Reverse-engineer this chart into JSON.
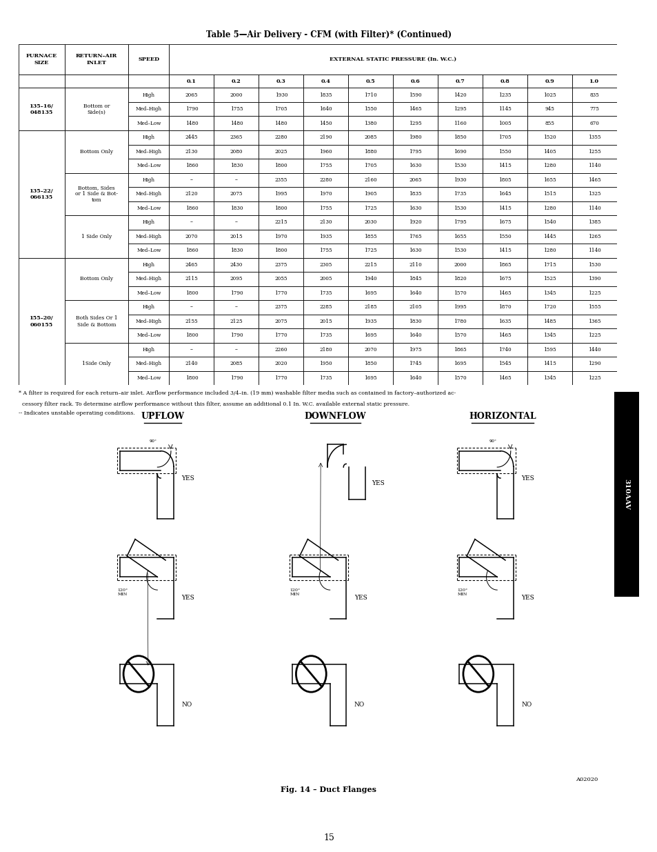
{
  "title": "Table 5—Air Delivery - CFM (with Filter)* (Continued)",
  "rows": [
    {
      "furnace": "135–16/\n048135",
      "inlet": "Bottom or\nSide(s)",
      "speeds": [
        "High",
        "Med–High",
        "Med–Low"
      ],
      "values": [
        [
          2065,
          2000,
          1930,
          1835,
          1710,
          1590,
          1420,
          1235,
          1025,
          835
        ],
        [
          1790,
          1755,
          1705,
          1640,
          1550,
          1465,
          1295,
          1145,
          945,
          775
        ],
        [
          1480,
          1480,
          1480,
          1450,
          1380,
          1295,
          1160,
          1005,
          855,
          670
        ]
      ]
    },
    {
      "furnace": "135–22/\n066135",
      "inlet": "Bottom Only",
      "speeds": [
        "High",
        "Med–High",
        "Med–Low"
      ],
      "values": [
        [
          2445,
          2365,
          2280,
          2190,
          2085,
          1980,
          1850,
          1705,
          1520,
          1355
        ],
        [
          2130,
          2080,
          2025,
          1960,
          1880,
          1795,
          1690,
          1550,
          1405,
          1255
        ],
        [
          1860,
          1830,
          1800,
          1755,
          1705,
          1630,
          1530,
          1415,
          1280,
          1140
        ]
      ]
    },
    {
      "furnace": "",
      "inlet": "Bottom, Sides\nor 1 Side & Bot-\ntom",
      "speeds": [
        "High",
        "Med–High",
        "Med–Low"
      ],
      "values": [
        [
          "--",
          "--",
          2355,
          2280,
          2160,
          2065,
          1930,
          1805,
          1655,
          1465
        ],
        [
          2120,
          2075,
          1995,
          1970,
          1905,
          1835,
          1735,
          1645,
          1515,
          1325
        ],
        [
          1860,
          1830,
          1800,
          1755,
          1725,
          1630,
          1530,
          1415,
          1280,
          1140
        ]
      ]
    },
    {
      "furnace": "",
      "inlet": "1 Side Only",
      "speeds": [
        "High",
        "Med–High",
        "Med–Low"
      ],
      "values": [
        [
          "--",
          "--",
          2215,
          2130,
          2030,
          1920,
          1795,
          1675,
          1540,
          1385
        ],
        [
          2070,
          2015,
          1970,
          1935,
          1855,
          1765,
          1655,
          1550,
          1445,
          1265
        ],
        [
          1860,
          1830,
          1800,
          1755,
          1725,
          1630,
          1530,
          1415,
          1280,
          1140
        ]
      ]
    },
    {
      "furnace": "155–20/\n060155",
      "inlet": "Bottom Only",
      "speeds": [
        "High",
        "Med–High",
        "Med–Low"
      ],
      "values": [
        [
          2465,
          2430,
          2375,
          2305,
          2215,
          2110,
          2000,
          1865,
          1715,
          1530
        ],
        [
          2115,
          2095,
          2055,
          2005,
          1940,
          1845,
          1820,
          1675,
          1525,
          1390
        ],
        [
          1800,
          1790,
          1770,
          1735,
          1695,
          1640,
          1570,
          1465,
          1345,
          1225
        ]
      ]
    },
    {
      "furnace": "",
      "inlet": "Both Sides Or 1\nSide & Bottom",
      "speeds": [
        "High",
        "Med–High",
        "Med–Low"
      ],
      "values": [
        [
          "--",
          "--",
          2375,
          2285,
          2185,
          2105,
          1995,
          1870,
          1720,
          1555
        ],
        [
          2155,
          2125,
          2075,
          2015,
          1935,
          1830,
          1780,
          1635,
          1485,
          1365
        ],
        [
          1800,
          1790,
          1770,
          1735,
          1695,
          1640,
          1570,
          1465,
          1345,
          1225
        ]
      ]
    },
    {
      "furnace": "",
      "inlet": "1Side Only",
      "speeds": [
        "High",
        "Med–High",
        "Med–Low"
      ],
      "values": [
        [
          "--",
          "--",
          2260,
          2180,
          2070,
          1975,
          1865,
          1740,
          1595,
          1440
        ],
        [
          2140,
          2085,
          2020,
          1950,
          1850,
          1745,
          1695,
          1545,
          1415,
          1290
        ],
        [
          1800,
          1790,
          1770,
          1735,
          1695,
          1640,
          1570,
          1465,
          1345,
          1225
        ]
      ]
    }
  ],
  "footnote1": "* A filter is required for each return–air inlet. Airflow performance included 3/4–in. (19 mm) washable filter media such as contained in factory–authorized ac-",
  "footnote2": "  cessory filter rack. To determine airflow performance without this filter, assume an additional 0.1 In. W.C. available external static pressure.",
  "footnote3": "-- Indicates unstable operating conditions.",
  "tab_label": "310AAV",
  "fig_caption": "Fig. 14 – Duct Flanges",
  "fig_code": "A02020",
  "section_titles": [
    "UPFLOW",
    "DOWNFLOW",
    "HORIZONTAL"
  ],
  "page_number": "15",
  "col_pressure_vals": [
    "0.1",
    "0.2",
    "0.3",
    "0.4",
    "0.5",
    "0.6",
    "0.7",
    "0.8",
    "0.9",
    "1.0"
  ]
}
